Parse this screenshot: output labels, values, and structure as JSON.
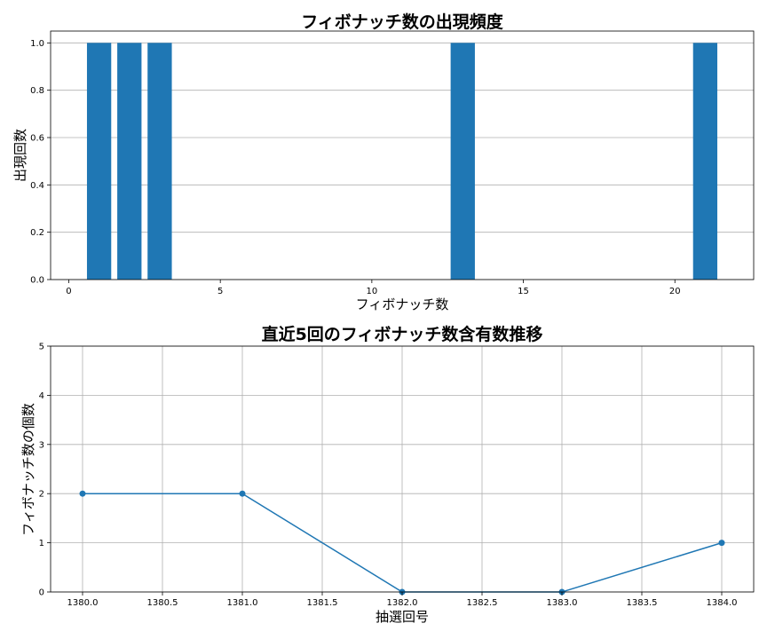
{
  "chart_data": [
    {
      "type": "bar",
      "title": "フィボナッチ数の出現頻度",
      "xlabel": "フィボナッチ数",
      "ylabel": "出現回数",
      "categories": [
        1,
        2,
        3,
        13,
        21
      ],
      "values": [
        1,
        1,
        1,
        1,
        1
      ],
      "xlim": [
        -0.6,
        22.6
      ],
      "ylim": [
        0,
        1.05
      ],
      "xticks": [
        0,
        5,
        10,
        15,
        20
      ],
      "xtick_labels": [
        "0",
        "5",
        "10",
        "15",
        "20"
      ],
      "yticks": [
        0,
        0.2,
        0.4,
        0.6,
        0.8,
        1.0
      ],
      "ytick_labels": [
        "0.0",
        "0.2",
        "0.4",
        "0.6",
        "0.8",
        "1.0"
      ],
      "grid": "y",
      "color": "#1f77b4"
    },
    {
      "type": "line",
      "title": "直近5回のフィボナッチ数含有数推移",
      "xlabel": "抽選回号",
      "ylabel": "フィボナッチ数の個数",
      "x": [
        1380,
        1381,
        1382,
        1383,
        1384
      ],
      "y": [
        2,
        2,
        0,
        0,
        1
      ],
      "xlim": [
        1379.8,
        1384.2
      ],
      "ylim": [
        0,
        5
      ],
      "xticks": [
        1380.0,
        1380.5,
        1381.0,
        1381.5,
        1382.0,
        1382.5,
        1383.0,
        1383.5,
        1384.0
      ],
      "xtick_labels": [
        "1380.0",
        "1380.5",
        "1381.0",
        "1381.5",
        "1382.0",
        "1382.5",
        "1383.0",
        "1383.5",
        "1384.0"
      ],
      "yticks": [
        0,
        1,
        2,
        3,
        4,
        5
      ],
      "ytick_labels": [
        "0",
        "1",
        "2",
        "3",
        "4",
        "5"
      ],
      "grid": "both",
      "marker": "circle",
      "color": "#1f77b4"
    }
  ]
}
